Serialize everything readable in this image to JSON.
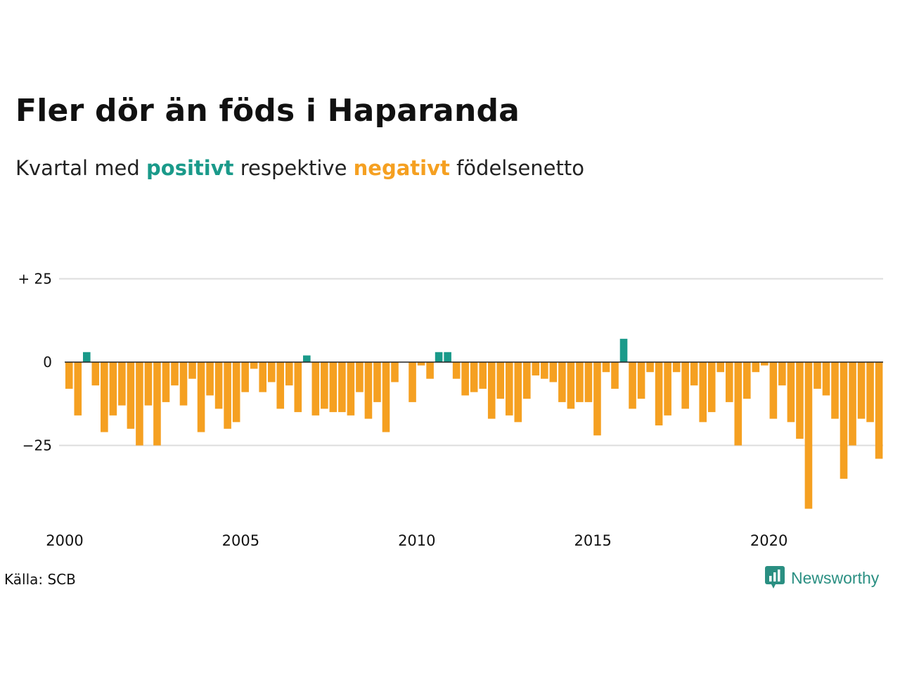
{
  "chart_data": {
    "type": "bar",
    "title": "Fler dör än föds i Haparanda",
    "subtitle": {
      "prefix": "Kvartal med",
      "positive_word": "positivt",
      "middle": "respektive",
      "negative_word": "negativt",
      "suffix": "födelsenetto"
    },
    "y_ticks": [
      {
        "value": 25,
        "label": "+ 25"
      },
      {
        "value": 0,
        "label": "0"
      },
      {
        "value": -25,
        "label": "−25"
      }
    ],
    "x_ticks": [
      {
        "value": 2000,
        "label": "2000"
      },
      {
        "value": 2005,
        "label": "2005"
      },
      {
        "value": 2010,
        "label": "2010"
      },
      {
        "value": 2015,
        "label": "2015"
      },
      {
        "value": 2020,
        "label": "2020"
      }
    ],
    "x_start": "2000 Q1",
    "x_end": "2023 Q1",
    "ylim": [
      -45,
      27
    ],
    "grid": true,
    "values": [
      -8,
      -16,
      3,
      -7,
      -21,
      -16,
      -13,
      -20,
      -25,
      -13,
      -25,
      -12,
      -7,
      -13,
      -5,
      -21,
      -10,
      -14,
      -20,
      -18,
      -9,
      -2,
      -9,
      -6,
      -14,
      -7,
      -15,
      2,
      -16,
      -14,
      -15,
      -15,
      -16,
      -9,
      -17,
      -12,
      -21,
      -6,
      0,
      -12,
      -1,
      -5,
      3,
      3,
      -5,
      -10,
      -9,
      -8,
      -17,
      -11,
      -16,
      -18,
      -11,
      -4,
      -5,
      -6,
      -12,
      -14,
      -12,
      -12,
      -22,
      -3,
      -8,
      7,
      -14,
      -11,
      -3,
      -19,
      -16,
      -3,
      -14,
      -7,
      -18,
      -15,
      -3,
      -12,
      -25,
      -11,
      -3,
      -1,
      -17,
      -7,
      -18,
      -23,
      -44,
      -8,
      -10,
      -17,
      -35,
      -25,
      -17,
      -18,
      -29
    ],
    "colors": {
      "positive": "#1a9a8a",
      "negative": "#f5a021",
      "grid": "#dddddd",
      "zero_line": "#222222"
    }
  },
  "source": "Källa: SCB",
  "logo": {
    "text": "Newsworthy",
    "icon": "newsworthy-chart-icon",
    "color": "#2a8f82"
  }
}
